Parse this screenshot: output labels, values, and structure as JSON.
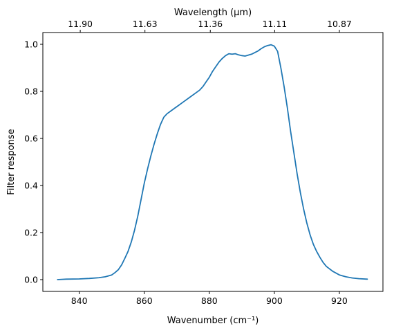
{
  "chart_data": {
    "type": "line",
    "xlabel": "Wavenumber (cm⁻¹)",
    "ylabel": "Filter response",
    "top_xlabel": "Wavelength (μm)",
    "xlim": [
      828.8,
      933.4
    ],
    "ylim": [
      -0.05,
      1.05
    ],
    "x_ticks": [
      840,
      860,
      880,
      900,
      920
    ],
    "y_ticks": [
      0.0,
      0.2,
      0.4,
      0.6,
      0.8,
      1.0
    ],
    "y_tick_labels": [
      "0.0",
      "0.2",
      "0.4",
      "0.6",
      "0.8",
      "1.0"
    ],
    "top_ticks": [
      {
        "wavenumber": 840.3,
        "label": "11.90"
      },
      {
        "wavenumber": 860.2,
        "label": "11.63"
      },
      {
        "wavenumber": 880.3,
        "label": "11.36"
      },
      {
        "wavenumber": 900.1,
        "label": "11.11"
      },
      {
        "wavenumber": 920.0,
        "label": "10.87"
      }
    ],
    "series": [
      {
        "color": "#1f77b4",
        "x": [
          833.3,
          836,
          840,
          843,
          846,
          848,
          850,
          851,
          852,
          853,
          854,
          855,
          856,
          857,
          858,
          859,
          860,
          861,
          862,
          863,
          864,
          865,
          866,
          867,
          868,
          870,
          872,
          874,
          876,
          877,
          878,
          879,
          880,
          881,
          882,
          883,
          884,
          885,
          886,
          887,
          888,
          889,
          890,
          891,
          892,
          893,
          894,
          895,
          896,
          897,
          898,
          899,
          900,
          901,
          902,
          903,
          904,
          905,
          906,
          907,
          908,
          909,
          910,
          911,
          912,
          913,
          914,
          915,
          916,
          918,
          920,
          922,
          924,
          926,
          928.6
        ],
        "y": [
          0.0,
          0.002,
          0.003,
          0.005,
          0.008,
          0.012,
          0.02,
          0.03,
          0.042,
          0.062,
          0.09,
          0.12,
          0.16,
          0.21,
          0.27,
          0.34,
          0.41,
          0.47,
          0.525,
          0.575,
          0.62,
          0.66,
          0.69,
          0.705,
          0.715,
          0.735,
          0.755,
          0.775,
          0.795,
          0.805,
          0.82,
          0.84,
          0.86,
          0.885,
          0.905,
          0.925,
          0.94,
          0.952,
          0.96,
          0.958,
          0.96,
          0.955,
          0.952,
          0.95,
          0.954,
          0.958,
          0.965,
          0.972,
          0.982,
          0.99,
          0.995,
          0.998,
          0.992,
          0.97,
          0.9,
          0.82,
          0.73,
          0.63,
          0.54,
          0.45,
          0.37,
          0.3,
          0.24,
          0.19,
          0.15,
          0.12,
          0.095,
          0.073,
          0.056,
          0.035,
          0.02,
          0.012,
          0.007,
          0.004,
          0.002
        ]
      }
    ]
  }
}
